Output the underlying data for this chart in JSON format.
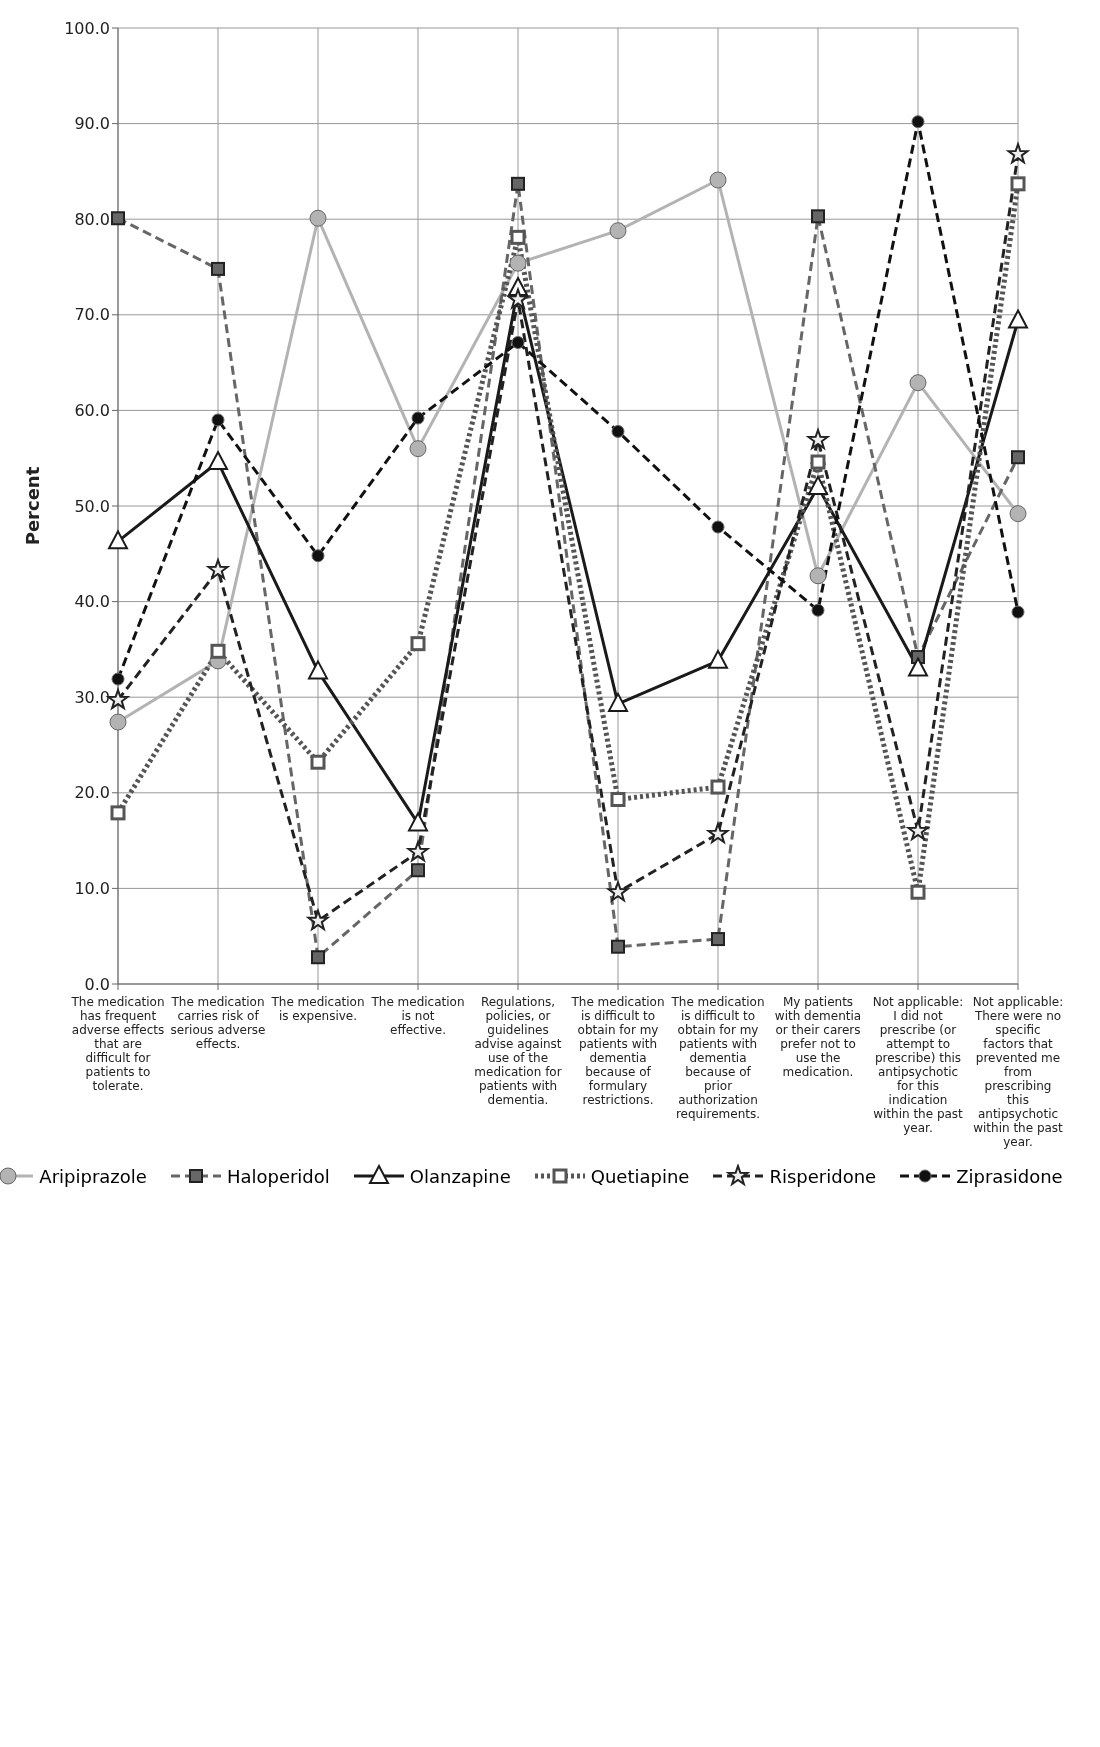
{
  "chart_data": {
    "type": "line",
    "ylabel": "Percent",
    "categories": [
      "The medication has frequent adverse effects that are difficult for patients to tolerate.",
      "The medication carries risk of serious adverse effects.",
      "The medication is expensive.",
      "The medication is not effective.",
      "Regulations, policies, or guidelines advise against use of the medication for patients with dementia.",
      "The medication is difficult to obtain for my patients with dementia because of formulary restrictions.",
      "The medication is difficult to obtain for my patients with dementia because of prior authorization requirements.",
      "My patients with dementia or their carers prefer not to use the medication.",
      "Not applicable: I did not prescribe (or attempt to prescribe) this antipsychotic for this indication within the past year.",
      "Not applicable: There were no specific factors that prevented me from prescribing this antipsychotic within the past year."
    ],
    "series": [
      {
        "name": "Aripiprazole",
        "color": "#b3b3b3",
        "marker": "circle",
        "line_style": "solid",
        "values": [
          27.4,
          33.8,
          80.1,
          56.0,
          75.4,
          78.8,
          84.1,
          42.7,
          62.9,
          49.2
        ]
      },
      {
        "name": "Haloperidol",
        "color": "#666666",
        "marker": "square",
        "line_style": "dashed",
        "values": [
          80.1,
          74.8,
          2.8,
          11.9,
          83.7,
          3.9,
          4.7,
          80.3,
          34.2,
          55.1
        ]
      },
      {
        "name": "Olanzapine",
        "color": "#1a1a1a",
        "marker": "triangle",
        "line_style": "solid",
        "values": [
          46.3,
          54.6,
          32.7,
          16.8,
          72.8,
          29.3,
          33.8,
          52.0,
          33.0,
          69.4
        ]
      },
      {
        "name": "Quetiapine",
        "color": "#555555",
        "marker": "square",
        "line_style": "dotted",
        "values": [
          17.9,
          34.8,
          23.2,
          35.6,
          78.1,
          19.3,
          20.6,
          54.6,
          9.6,
          83.7
        ]
      },
      {
        "name": "Risperidone",
        "color": "#222222",
        "marker": "star",
        "line_style": "dashed",
        "values": [
          29.7,
          43.3,
          6.6,
          13.8,
          71.6,
          9.6,
          15.7,
          56.9,
          16.0,
          86.8
        ]
      },
      {
        "name": "Ziprasidone",
        "color": "#111111",
        "marker": "circle",
        "line_style": "dashed",
        "values": [
          31.9,
          59.0,
          44.8,
          59.2,
          67.1,
          57.8,
          47.8,
          39.1,
          90.2,
          38.9
        ]
      }
    ],
    "ylim": [
      0,
      100
    ],
    "yticks": [
      {
        "value": 0,
        "label": "0.0"
      },
      {
        "value": 10,
        "label": "10.0"
      },
      {
        "value": 20,
        "label": "20.0"
      },
      {
        "value": 30,
        "label": "30.0"
      },
      {
        "value": 40,
        "label": "40.0"
      },
      {
        "value": 50,
        "label": "50.0"
      },
      {
        "value": 60,
        "label": "60.0"
      },
      {
        "value": 70,
        "label": "70.0"
      },
      {
        "value": 80,
        "label": "80.0"
      },
      {
        "value": 90,
        "label": "90.0"
      },
      {
        "value": 100,
        "label": "100.0"
      }
    ],
    "grid": true,
    "legend": "bottom"
  }
}
